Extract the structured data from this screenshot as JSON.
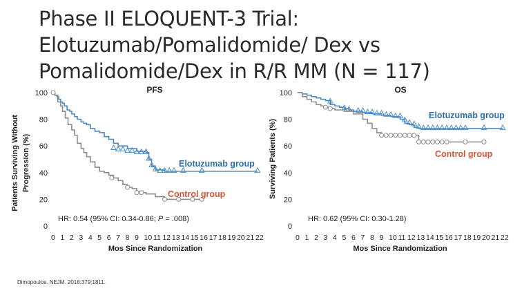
{
  "slide": {
    "title_lines": [
      "Phase II ELOQUENT-3 Trial:",
      "Elotuzumab/Pomalidomide/ Dex vs",
      "Pomalidomide/Dex in R/R MM (N = 117)"
    ],
    "reference": "Dimopoulos. NEJM. 2018;379:1811.",
    "colors": {
      "elotuzumab": "#4a8ac4",
      "control": "#8c8c8c",
      "elo_label": "#2e6ea6",
      "control_label": "#d3553a"
    }
  },
  "chart_data": [
    {
      "type": "line",
      "title": "PFS",
      "xlabel": "Mos Since Randomization",
      "ylabel": "Patients Surviving Without Progression (%)",
      "ylabel_lines": [
        "Patients Surviving Without",
        "Progression (%)"
      ],
      "xlim": [
        0,
        22
      ],
      "ylim": [
        0,
        100
      ],
      "xticks": [
        0,
        1,
        2,
        3,
        4,
        5,
        6,
        7,
        8,
        9,
        10,
        11,
        12,
        13,
        14,
        15,
        16,
        17,
        18,
        19,
        20,
        21,
        22
      ],
      "yticks": [
        0,
        20,
        40,
        60,
        80,
        100
      ],
      "annotation": "HR: 0.54 (95% CI: 0.34-0.86; P = .008)",
      "series": [
        {
          "name": "Elotuzumab group",
          "x": [
            0,
            0.2,
            0.4,
            0.6,
            0.8,
            1.0,
            1.2,
            1.5,
            1.8,
            2.0,
            2.3,
            2.6,
            3.0,
            3.3,
            3.6,
            4.0,
            4.5,
            5.0,
            5.5,
            6.0,
            6.5,
            7.0,
            8.0,
            9.0,
            9.5,
            10.0,
            10.3,
            10.6,
            11.0,
            12.0,
            14.0,
            16.0,
            18.0,
            20.0,
            22.0
          ],
          "y": [
            100,
            98,
            97,
            95,
            93,
            92,
            90,
            87,
            86,
            84,
            82,
            80,
            78,
            77,
            76,
            73,
            71,
            70,
            67,
            65,
            62,
            60,
            58,
            56,
            56,
            55,
            50,
            45,
            42,
            41,
            41,
            41,
            41,
            41,
            41
          ],
          "censors_x": [
            6.5,
            7.0,
            7.5,
            8.0,
            8.5,
            9.0,
            9.5,
            10.0,
            10.3,
            10.6,
            11.0,
            11.5,
            12.0,
            12.5,
            13.0,
            14.0,
            16.0,
            22.0
          ],
          "censors_y": [
            58,
            57,
            57,
            56,
            56,
            55,
            55,
            55,
            50,
            45,
            42,
            41,
            41,
            41,
            41,
            41,
            41,
            41
          ]
        },
        {
          "name": "Control group",
          "x": [
            0,
            0.2,
            0.5,
            0.8,
            1.0,
            1.3,
            1.6,
            2.0,
            2.3,
            2.6,
            3.0,
            3.3,
            3.6,
            4.0,
            4.5,
            5.0,
            5.5,
            6.0,
            6.5,
            7.0,
            7.5,
            8.0,
            8.5,
            9.0,
            9.5,
            10.0,
            11.0,
            12.0,
            13.0,
            14.0,
            15.0,
            16.0
          ],
          "y": [
            100,
            98,
            93,
            90,
            86,
            81,
            76,
            72,
            68,
            62,
            58,
            55,
            52,
            48,
            44,
            41,
            40,
            38,
            36,
            34,
            31,
            29,
            28,
            26,
            25,
            24,
            22,
            20,
            20,
            20,
            20,
            20
          ],
          "censors_x": [
            0,
            6.3,
            8.0,
            9.0,
            9.5,
            12.0,
            13.5,
            15.0,
            16.0
          ],
          "censors_y": [
            100,
            36,
            29,
            25,
            25,
            20,
            20,
            20,
            20
          ]
        }
      ]
    },
    {
      "type": "line",
      "title": "OS",
      "xlabel": "Mos Since Randomization",
      "ylabel": "Surviving Patients (%)",
      "ylabel_lines": [
        "Surviving Patients (%)"
      ],
      "xlim": [
        0,
        22
      ],
      "ylim": [
        0,
        100
      ],
      "xticks": [
        0,
        1,
        2,
        3,
        4,
        5,
        6,
        7,
        8,
        9,
        10,
        11,
        12,
        13,
        14,
        15,
        16,
        17,
        18,
        19,
        20,
        21,
        22
      ],
      "yticks": [
        0,
        20,
        40,
        60,
        80,
        100
      ],
      "annotation": "HR: 0.62 (95% CI: 0.30-1.28)",
      "series": [
        {
          "name": "Elotuzumab group",
          "x": [
            0,
            0.5,
            1.0,
            1.5,
            2.0,
            2.5,
            3.0,
            3.5,
            4.0,
            4.5,
            5.0,
            5.5,
            6.0,
            7.0,
            8.0,
            9.0,
            10.0,
            11.0,
            11.5,
            12.0,
            12.5,
            13.0,
            22.0
          ],
          "y": [
            100,
            99,
            98,
            97,
            96,
            95,
            94,
            91,
            90,
            89,
            88,
            87,
            86,
            85,
            84,
            83,
            82,
            80,
            77,
            76,
            74,
            73,
            73
          ],
          "censors_x": [
            3.5,
            5.0,
            5.5,
            6.5,
            7.0,
            7.5,
            8.0,
            8.5,
            9.0,
            9.5,
            10.0,
            10.5,
            11.0,
            11.5,
            12.0,
            12.5,
            13.0,
            13.5,
            14.0,
            14.5,
            15.0,
            15.5,
            16.0,
            16.5,
            17.0,
            17.5,
            18.0,
            20.0,
            22.0
          ],
          "censors_y": [
            93,
            88,
            87,
            86,
            86,
            85,
            85,
            84,
            84,
            83,
            83,
            82,
            82,
            79,
            77,
            76,
            74,
            73,
            73,
            73,
            73,
            73,
            73,
            73,
            73,
            73,
            73,
            73,
            73
          ]
        },
        {
          "name": "Control group",
          "x": [
            0,
            0.5,
            1.0,
            1.5,
            2.0,
            2.5,
            3.0,
            3.5,
            4.0,
            5.0,
            6.0,
            7.0,
            7.5,
            8.0,
            8.5,
            9.0,
            10.0,
            11.0,
            12.0,
            12.5,
            13.0,
            14.0,
            16.0,
            18.0,
            20.0
          ],
          "y": [
            100,
            97,
            95,
            93,
            91,
            90,
            89,
            88,
            87,
            86,
            84,
            80,
            77,
            73,
            70,
            68,
            68,
            68,
            68,
            68,
            63,
            63,
            63,
            63,
            63
          ],
          "censors_x": [
            3.0,
            3.5,
            9.0,
            9.5,
            10.0,
            10.5,
            11.0,
            11.5,
            12.0,
            12.5,
            13.0,
            13.5,
            14.0,
            14.5,
            15.0,
            15.5,
            16.0,
            18.0,
            20.0
          ],
          "censors_y": [
            89,
            88,
            68,
            68,
            68,
            68,
            68,
            68,
            68,
            68,
            63,
            63,
            63,
            63,
            63,
            63,
            63,
            63,
            63
          ]
        }
      ]
    }
  ]
}
